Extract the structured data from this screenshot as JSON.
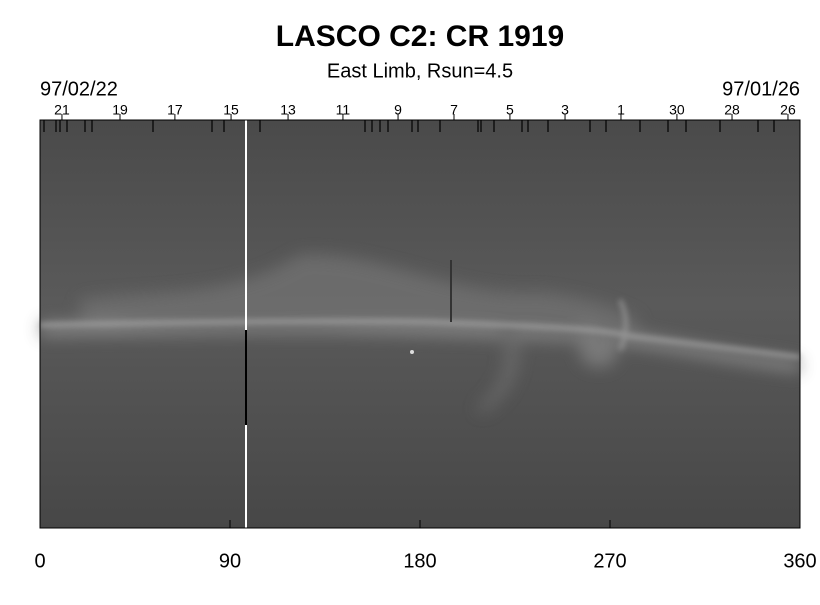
{
  "chart_data": {
    "type": "synoptic-map",
    "title": "LASCO C2: CR 1919",
    "subtitle": "East Limb, Rsun=4.5",
    "start_date": "97/02/22",
    "end_date": "97/01/26",
    "xlim": [
      0,
      360
    ],
    "xticks": [
      0,
      90,
      180,
      270,
      360
    ],
    "top_ticks": [
      {
        "value": 10.4,
        "label": "21"
      },
      {
        "value": 37.9,
        "label": "19"
      },
      {
        "value": 63.9,
        "label": "17"
      },
      {
        "value": 90.5,
        "label": "15"
      },
      {
        "value": 117.5,
        "label": "13"
      },
      {
        "value": 143.5,
        "label": "11"
      },
      {
        "value": 169.6,
        "label": "9"
      },
      {
        "value": 196.1,
        "label": "7"
      },
      {
        "value": 222.6,
        "label": "5"
      },
      {
        "value": 248.7,
        "label": "3"
      },
      {
        "value": 275.2,
        "label": "1"
      },
      {
        "value": 301.7,
        "label": "30"
      },
      {
        "value": 327.8,
        "label": "28"
      },
      {
        "value": 354.3,
        "label": "26"
      }
    ]
  }
}
